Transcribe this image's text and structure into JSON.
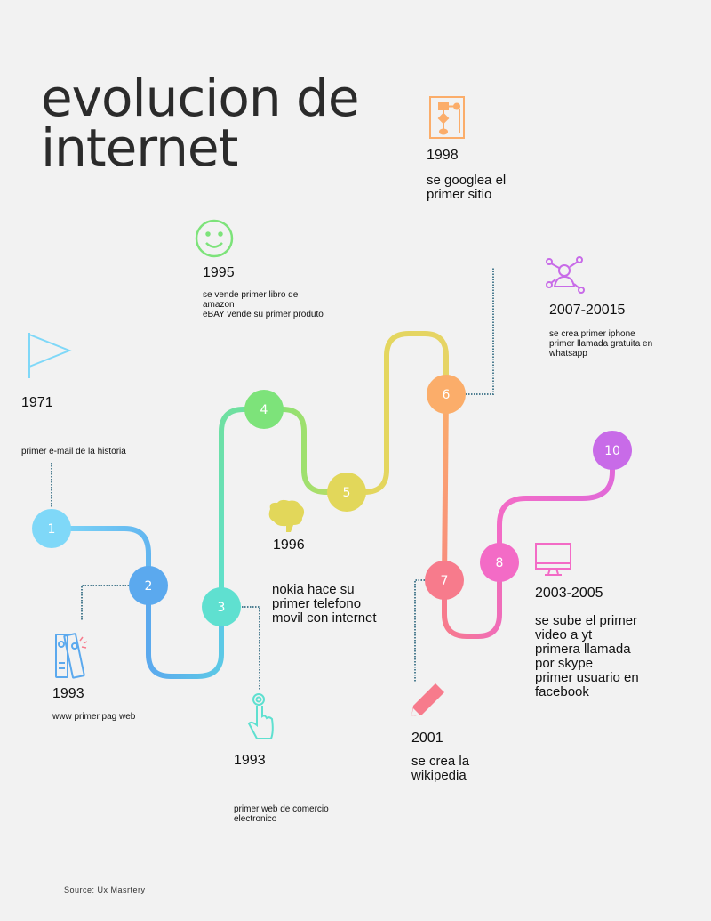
{
  "title": {
    "line1": "evolucion de",
    "line2": "internet"
  },
  "source": "Source: Ux Masrtery",
  "nodes": [
    "1",
    "2",
    "3",
    "4",
    "5",
    "6",
    "7",
    "8",
    "10"
  ],
  "events": {
    "e1971": {
      "year": "1971",
      "desc": "primer e-mail de la historia"
    },
    "e1993a": {
      "year": "1993",
      "desc": "www primer pag web"
    },
    "e1993b": {
      "year": "1993",
      "desc": "primer web de comercio\nelectronico"
    },
    "e1995": {
      "year": "1995",
      "desc": "se vende primer libro de\namazon\neBAY vende su primer produto"
    },
    "e1996": {
      "year": "1996",
      "desc": "nokia hace su\nprimer telefono\nmovil con internet"
    },
    "e1998": {
      "year": "1998",
      "desc": "se googlea el\nprimer sitio"
    },
    "e2001": {
      "year": "2001",
      "desc": "se crea la\nwikipedia"
    },
    "e2003": {
      "year": "2003-2005",
      "desc": "se sube el primer\nvideo a yt\nprimera llamada\npor skype\nprimer usuario en\nfacebook"
    },
    "e2007": {
      "year": "2007-20015",
      "desc": "se crea primer iphone\nprimer llamada gratuita en\nwhatsapp"
    }
  },
  "colors": {
    "n1": "#7fd8f8",
    "n2": "#5ba9ee",
    "n3": "#5fe0d0",
    "n4": "#7de37a",
    "n5": "#e2d75a",
    "n6": "#fbad6a",
    "n7": "#f77b8c",
    "n8": "#f36bc6",
    "n10": "#c86be8"
  },
  "icons": [
    "flag-icon",
    "binders-icon",
    "touch-hand-icon",
    "smiley-icon",
    "brain-icon",
    "flowchart-icon",
    "network-user-icon",
    "pencil-icon",
    "monitor-icon"
  ]
}
